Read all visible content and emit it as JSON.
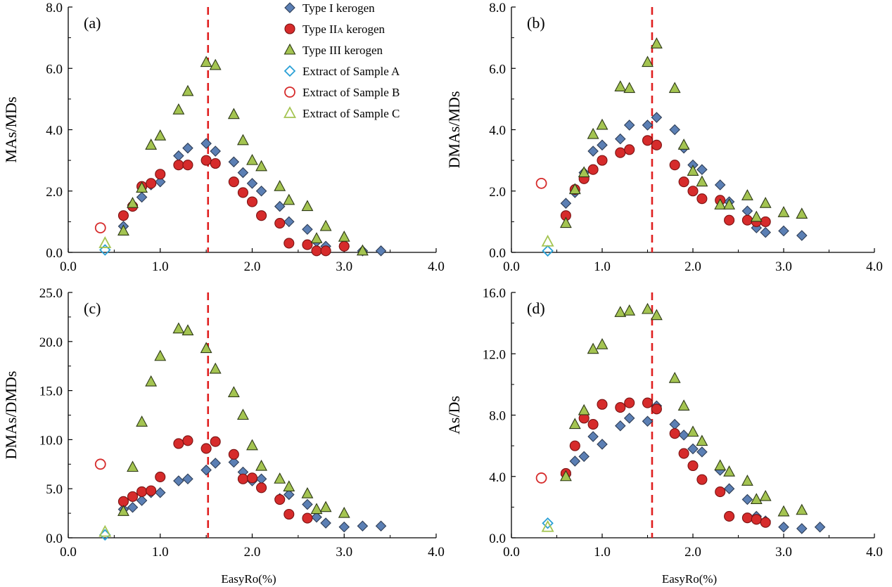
{
  "chart_data": [
    {
      "type": "scatter",
      "panel_label": "(a)",
      "ylabel": "MAs/MDs",
      "xlabel": "",
      "xlim": [
        0.0,
        4.0
      ],
      "ylim": [
        0.0,
        8.0
      ],
      "xticks": [
        "0.0",
        "1.0",
        "2.0",
        "3.0",
        "4.0"
      ],
      "yticks": [
        "0.0",
        "2.0",
        "4.0",
        "6.0",
        "8.0"
      ],
      "vline_x": 1.52,
      "series": [
        {
          "name": "Type I kerogen",
          "x": [
            0.6,
            0.7,
            0.8,
            0.9,
            1.0,
            1.2,
            1.3,
            1.5,
            1.6,
            1.8,
            1.9,
            2.0,
            2.1,
            2.3,
            2.4,
            2.6,
            2.7,
            2.8,
            3.0,
            3.2,
            3.4
          ],
          "y": [
            0.85,
            1.55,
            1.8,
            2.2,
            2.3,
            3.15,
            3.4,
            3.55,
            3.3,
            2.95,
            2.6,
            2.25,
            2.0,
            1.5,
            1.0,
            0.75,
            0.35,
            0.2,
            0.2,
            0.05,
            0.05
          ]
        },
        {
          "name": "Type IIA kerogen",
          "x": [
            0.6,
            0.7,
            0.8,
            0.9,
            1.0,
            1.2,
            1.3,
            1.5,
            1.6,
            1.8,
            1.9,
            2.0,
            2.1,
            2.3,
            2.4,
            2.6,
            2.7,
            2.8,
            3.0
          ],
          "y": [
            1.2,
            1.5,
            2.15,
            2.25,
            2.55,
            2.85,
            2.85,
            3.0,
            2.9,
            2.3,
            1.95,
            1.65,
            1.2,
            0.95,
            0.3,
            0.25,
            0.05,
            0.05,
            0.2
          ]
        },
        {
          "name": "Type III kerogen",
          "x": [
            0.6,
            0.7,
            0.8,
            0.9,
            1.0,
            1.2,
            1.3,
            1.5,
            1.6,
            1.8,
            1.9,
            2.0,
            2.1,
            2.3,
            2.4,
            2.6,
            2.7,
            2.8,
            3.0,
            3.2
          ],
          "y": [
            0.7,
            1.6,
            2.1,
            3.5,
            3.8,
            4.65,
            5.25,
            6.2,
            6.1,
            4.5,
            3.65,
            3.0,
            2.8,
            2.15,
            1.7,
            1.5,
            0.45,
            0.85,
            0.5,
            0.05
          ]
        },
        {
          "name": "Extract of Sample A",
          "x": [
            0.4
          ],
          "y": [
            0.08
          ]
        },
        {
          "name": "Extract of Sample B",
          "x": [
            0.35
          ],
          "y": [
            0.8
          ]
        },
        {
          "name": "Extract of Sample C",
          "x": [
            0.4
          ],
          "y": [
            0.3
          ]
        }
      ]
    },
    {
      "type": "scatter",
      "panel_label": "(b)",
      "ylabel": "DMAs/MDs",
      "xlabel": "",
      "xlim": [
        0.0,
        4.0
      ],
      "ylim": [
        0.0,
        8.0
      ],
      "xticks": [
        "0.0",
        "1.0",
        "2.0",
        "3.0",
        "4.0"
      ],
      "yticks": [
        "0.0",
        "2.0",
        "4.0",
        "6.0",
        "8.0"
      ],
      "vline_x": 1.55,
      "series": [
        {
          "name": "Type I kerogen",
          "x": [
            0.6,
            0.7,
            0.8,
            0.9,
            1.0,
            1.2,
            1.3,
            1.5,
            1.6,
            1.8,
            1.9,
            2.0,
            2.1,
            2.3,
            2.4,
            2.6,
            2.7,
            2.8,
            3.0,
            3.2
          ],
          "y": [
            1.6,
            1.95,
            2.6,
            3.3,
            3.5,
            3.7,
            4.15,
            4.15,
            4.4,
            4.0,
            3.4,
            2.85,
            2.7,
            2.2,
            1.65,
            1.35,
            0.8,
            0.65,
            0.7,
            0.55
          ]
        },
        {
          "name": "Type IIA kerogen",
          "x": [
            0.6,
            0.7,
            0.8,
            0.9,
            1.0,
            1.2,
            1.3,
            1.5,
            1.6,
            1.8,
            1.9,
            2.0,
            2.1,
            2.3,
            2.4,
            2.6,
            2.7,
            2.8
          ],
          "y": [
            1.2,
            2.05,
            2.4,
            2.7,
            3.0,
            3.25,
            3.35,
            3.65,
            3.5,
            2.85,
            2.3,
            2.0,
            1.75,
            1.7,
            1.05,
            1.05,
            1.0,
            1.0
          ]
        },
        {
          "name": "Type III kerogen",
          "x": [
            0.6,
            0.7,
            0.8,
            0.9,
            1.0,
            1.2,
            1.3,
            1.5,
            1.6,
            1.8,
            1.9,
            2.0,
            2.1,
            2.3,
            2.4,
            2.6,
            2.7,
            2.8,
            3.0,
            3.2
          ],
          "y": [
            0.95,
            2.05,
            2.6,
            3.85,
            4.15,
            5.4,
            5.35,
            6.2,
            6.8,
            5.35,
            3.5,
            2.65,
            2.3,
            1.55,
            1.55,
            1.85,
            1.15,
            1.6,
            1.3,
            1.25
          ]
        },
        {
          "name": "Extract of Sample A",
          "x": [
            0.4
          ],
          "y": [
            0.05
          ]
        },
        {
          "name": "Extract of Sample B",
          "x": [
            0.33
          ],
          "y": [
            2.25
          ]
        },
        {
          "name": "Extract of Sample C",
          "x": [
            0.4
          ],
          "y": [
            0.35
          ]
        }
      ]
    },
    {
      "type": "scatter",
      "panel_label": "(c)",
      "ylabel": "DMAs/DMDs",
      "xlabel": "EasyRo(%)",
      "xlim": [
        0.0,
        4.0
      ],
      "ylim": [
        0.0,
        25.0
      ],
      "xticks": [
        "0.0",
        "1.0",
        "2.0",
        "3.0",
        "4.0"
      ],
      "yticks": [
        "0.0",
        "5.0",
        "10.0",
        "15.0",
        "20.0",
        "25.0"
      ],
      "vline_x": 1.52,
      "series": [
        {
          "name": "Type I kerogen",
          "x": [
            0.6,
            0.7,
            0.8,
            0.9,
            1.0,
            1.2,
            1.3,
            1.5,
            1.6,
            1.8,
            1.9,
            2.0,
            2.1,
            2.3,
            2.4,
            2.6,
            2.7,
            2.8,
            3.0,
            3.2,
            3.4
          ],
          "y": [
            2.9,
            3.1,
            3.8,
            4.6,
            4.6,
            5.8,
            6.0,
            6.9,
            7.6,
            7.7,
            6.7,
            5.8,
            6.0,
            4.0,
            4.4,
            3.4,
            2.1,
            1.5,
            1.1,
            1.2,
            1.2
          ]
        },
        {
          "name": "Type IIA kerogen",
          "x": [
            0.6,
            0.7,
            0.8,
            0.9,
            1.0,
            1.2,
            1.3,
            1.5,
            1.6,
            1.8,
            1.9,
            2.0,
            2.1,
            2.3,
            2.4,
            2.6
          ],
          "y": [
            3.7,
            4.2,
            4.7,
            4.8,
            6.2,
            9.6,
            9.9,
            9.1,
            9.8,
            8.5,
            6.0,
            6.1,
            5.1,
            3.9,
            2.4,
            2.0
          ]
        },
        {
          "name": "Type III kerogen",
          "x": [
            0.6,
            0.7,
            0.8,
            0.9,
            1.0,
            1.2,
            1.3,
            1.5,
            1.6,
            1.8,
            1.9,
            2.0,
            2.1,
            2.3,
            2.4,
            2.6,
            2.7,
            2.8,
            3.0
          ],
          "y": [
            2.7,
            7.2,
            11.8,
            15.9,
            18.5,
            21.3,
            21.1,
            19.3,
            17.2,
            14.8,
            12.5,
            9.4,
            7.3,
            6.0,
            5.2,
            4.5,
            2.9,
            3.1,
            2.5
          ]
        },
        {
          "name": "Extract of Sample A",
          "x": [
            0.4
          ],
          "y": [
            0.3
          ]
        },
        {
          "name": "Extract of Sample B",
          "x": [
            0.35
          ],
          "y": [
            7.5
          ]
        },
        {
          "name": "Extract of Sample C",
          "x": [
            0.4
          ],
          "y": [
            0.6
          ]
        }
      ]
    },
    {
      "type": "scatter",
      "panel_label": "(d)",
      "ylabel": "As/Ds",
      "xlabel": "EasyRo(%)",
      "xlim": [
        0.0,
        4.0
      ],
      "ylim": [
        0.0,
        16.0
      ],
      "xticks": [
        "0.0",
        "1.0",
        "2.0",
        "3.0",
        "4.0"
      ],
      "yticks": [
        "0.0",
        "4.0",
        "8.0",
        "12.0",
        "16.0"
      ],
      "vline_x": 1.55,
      "series": [
        {
          "name": "Type I kerogen",
          "x": [
            0.6,
            0.7,
            0.8,
            0.9,
            1.0,
            1.2,
            1.3,
            1.5,
            1.6,
            1.8,
            1.9,
            2.0,
            2.1,
            2.3,
            2.4,
            2.6,
            2.7,
            2.8,
            3.0,
            3.2,
            3.4
          ],
          "y": [
            4.1,
            5.0,
            5.3,
            6.6,
            6.1,
            7.3,
            7.8,
            7.6,
            8.6,
            7.4,
            6.7,
            5.8,
            5.6,
            4.4,
            3.2,
            2.5,
            1.4,
            1.1,
            0.7,
            0.6,
            0.7
          ]
        },
        {
          "name": "Type IIA kerogen",
          "x": [
            0.6,
            0.7,
            0.8,
            0.9,
            1.0,
            1.2,
            1.3,
            1.5,
            1.6,
            1.8,
            1.9,
            2.0,
            2.1,
            2.3,
            2.4,
            2.6,
            2.7,
            2.8
          ],
          "y": [
            4.2,
            6.0,
            7.8,
            7.4,
            8.7,
            8.5,
            8.8,
            8.8,
            8.4,
            6.8,
            5.5,
            4.7,
            3.8,
            3.0,
            1.4,
            1.3,
            1.2,
            1.0
          ]
        },
        {
          "name": "Type III kerogen",
          "x": [
            0.6,
            0.7,
            0.8,
            0.9,
            1.0,
            1.2,
            1.3,
            1.5,
            1.6,
            1.8,
            1.9,
            2.0,
            2.1,
            2.3,
            2.4,
            2.6,
            2.7,
            2.8,
            3.0,
            3.2
          ],
          "y": [
            4.0,
            7.4,
            8.3,
            12.3,
            12.6,
            14.7,
            14.8,
            14.9,
            14.5,
            10.4,
            8.6,
            6.9,
            6.3,
            4.7,
            4.3,
            3.7,
            2.5,
            2.7,
            1.7,
            1.8
          ]
        },
        {
          "name": "Extract of Sample A",
          "x": [
            0.4
          ],
          "y": [
            0.95
          ]
        },
        {
          "name": "Extract of Sample B",
          "x": [
            0.33
          ],
          "y": [
            3.9
          ]
        },
        {
          "name": "Extract of Sample C",
          "x": [
            0.4
          ],
          "y": [
            0.7
          ]
        }
      ]
    }
  ],
  "legend": {
    "entries": [
      {
        "label": "Type I kerogen",
        "label_main": "Type I",
        "label_sub": "",
        "label_rest": " kerogen",
        "marker": "diamond",
        "fill": "#5b7fb4",
        "stroke": "#2e3d55"
      },
      {
        "label": "Type IIA kerogen",
        "label_main": "Type II",
        "label_sub": "A",
        "label_rest": " kerogen",
        "marker": "circle",
        "fill": "#d62b2b",
        "stroke": "#7a1212"
      },
      {
        "label": "Type III kerogen",
        "label_main": "Type III",
        "label_sub": "",
        "label_rest": " kerogen",
        "marker": "triangle",
        "fill": "#a4c451",
        "stroke": "#2c3814"
      },
      {
        "label": "Extract of Sample A",
        "label_main": "Extract of Sample A",
        "label_sub": "",
        "label_rest": "",
        "marker": "diamond-open",
        "fill": "none",
        "stroke": "#2aa0d6"
      },
      {
        "label": "Extract of Sample B",
        "label_main": "Extract of Sample B",
        "label_sub": "",
        "label_rest": "",
        "marker": "circle-open",
        "fill": "none",
        "stroke": "#d62b2b"
      },
      {
        "label": "Extract of Sample C",
        "label_main": "Extract of Sample C",
        "label_sub": "",
        "label_rest": "",
        "marker": "triangle-open",
        "fill": "none",
        "stroke": "#a4c451"
      }
    ]
  },
  "colors": {
    "vline": "#e02020",
    "axis": "#000000"
  }
}
